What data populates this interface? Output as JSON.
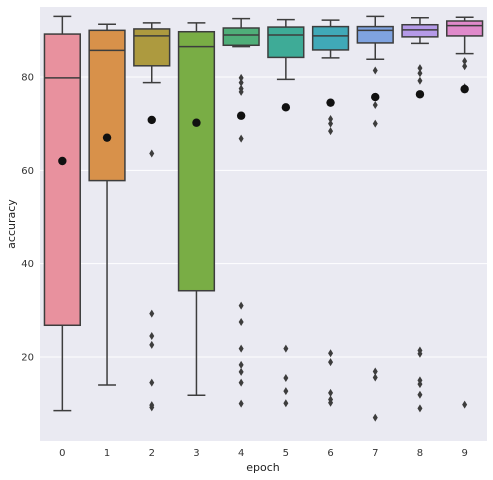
{
  "chart_data": {
    "type": "box",
    "xlabel": "epoch",
    "ylabel": "accuracy",
    "ylim": [
      2,
      95
    ],
    "yticks": [
      20,
      40,
      60,
      80
    ],
    "grid": true,
    "colors": {
      "background": "#eaeaf2",
      "grid": "#ffffff",
      "box_edge": "#3d3d3d",
      "mean_marker": "#111111",
      "outlier": "#3d3d3d"
    },
    "categories": [
      "0",
      "1",
      "2",
      "3",
      "4",
      "5",
      "6",
      "7",
      "8",
      "9"
    ],
    "boxes": [
      {
        "epoch": "0",
        "color": "#e8919e",
        "whisker_low": 8.5,
        "q1": 26.8,
        "median": 79.8,
        "q3": 89.2,
        "whisker_high": 93.0,
        "mean": 62.0,
        "outliers": []
      },
      {
        "epoch": "1",
        "color": "#d8914a",
        "whisker_low": 14.0,
        "q1": 57.8,
        "median": 85.7,
        "q3": 90.0,
        "whisker_high": 91.3,
        "mean": 67.0,
        "outliers": []
      },
      {
        "epoch": "2",
        "color": "#ad9a3f",
        "whisker_low": 78.8,
        "q1": 82.4,
        "median": 88.8,
        "q3": 90.3,
        "whisker_high": 91.6,
        "mean": 70.8,
        "outliers": [
          63.6,
          29.3,
          24.5,
          22.6,
          14.5,
          9.7,
          9.2
        ]
      },
      {
        "epoch": "3",
        "color": "#79ad45",
        "whisker_low": 11.8,
        "q1": 34.2,
        "median": 86.5,
        "q3": 89.7,
        "whisker_high": 91.6,
        "mean": 70.2,
        "outliers": []
      },
      {
        "epoch": "4",
        "color": "#4fae79",
        "whisker_low": 86.5,
        "q1": 86.8,
        "median": 89.0,
        "q3": 90.5,
        "whisker_high": 92.5,
        "mean": 71.7,
        "outliers": [
          79.8,
          78.8,
          77.5,
          76.8,
          66.8,
          31.0,
          27.5,
          21.8,
          18.3,
          16.8,
          14.5,
          10.0
        ]
      },
      {
        "epoch": "5",
        "color": "#3eab97",
        "whisker_low": 79.5,
        "q1": 84.2,
        "median": 89.0,
        "q3": 90.7,
        "whisker_high": 92.3,
        "mean": 73.5,
        "outliers": [
          21.8,
          15.5,
          12.7,
          10.1
        ]
      },
      {
        "epoch": "6",
        "color": "#40a9b8",
        "whisker_low": 84.1,
        "q1": 85.8,
        "median": 88.8,
        "q3": 90.8,
        "whisker_high": 92.2,
        "mean": 74.5,
        "outliers": [
          71.0,
          70.0,
          68.4,
          20.8,
          18.9,
          12.3,
          10.9,
          10.2
        ]
      },
      {
        "epoch": "7",
        "color": "#7fa3e0",
        "whisker_low": 83.8,
        "q1": 87.3,
        "median": 90.0,
        "q3": 90.8,
        "whisker_high": 93.0,
        "mean": 75.7,
        "outliers": [
          81.4,
          75.8,
          74.0,
          70.0,
          16.9,
          15.6,
          7.0
        ]
      },
      {
        "epoch": "8",
        "color": "#b59ae8",
        "whisker_low": 87.2,
        "q1": 88.6,
        "median": 90.1,
        "q3": 91.2,
        "whisker_high": 92.7,
        "mean": 76.3,
        "outliers": [
          81.9,
          80.8,
          79.2,
          21.4,
          20.7,
          15.0,
          14.2,
          11.9,
          9.0
        ]
      },
      {
        "epoch": "9",
        "color": "#e08acb",
        "whisker_low": 85.0,
        "q1": 88.8,
        "median": 91.0,
        "q3": 92.0,
        "whisker_high": 92.8,
        "mean": 77.4,
        "outliers": [
          83.4,
          82.3,
          77.8,
          9.8
        ]
      }
    ]
  }
}
